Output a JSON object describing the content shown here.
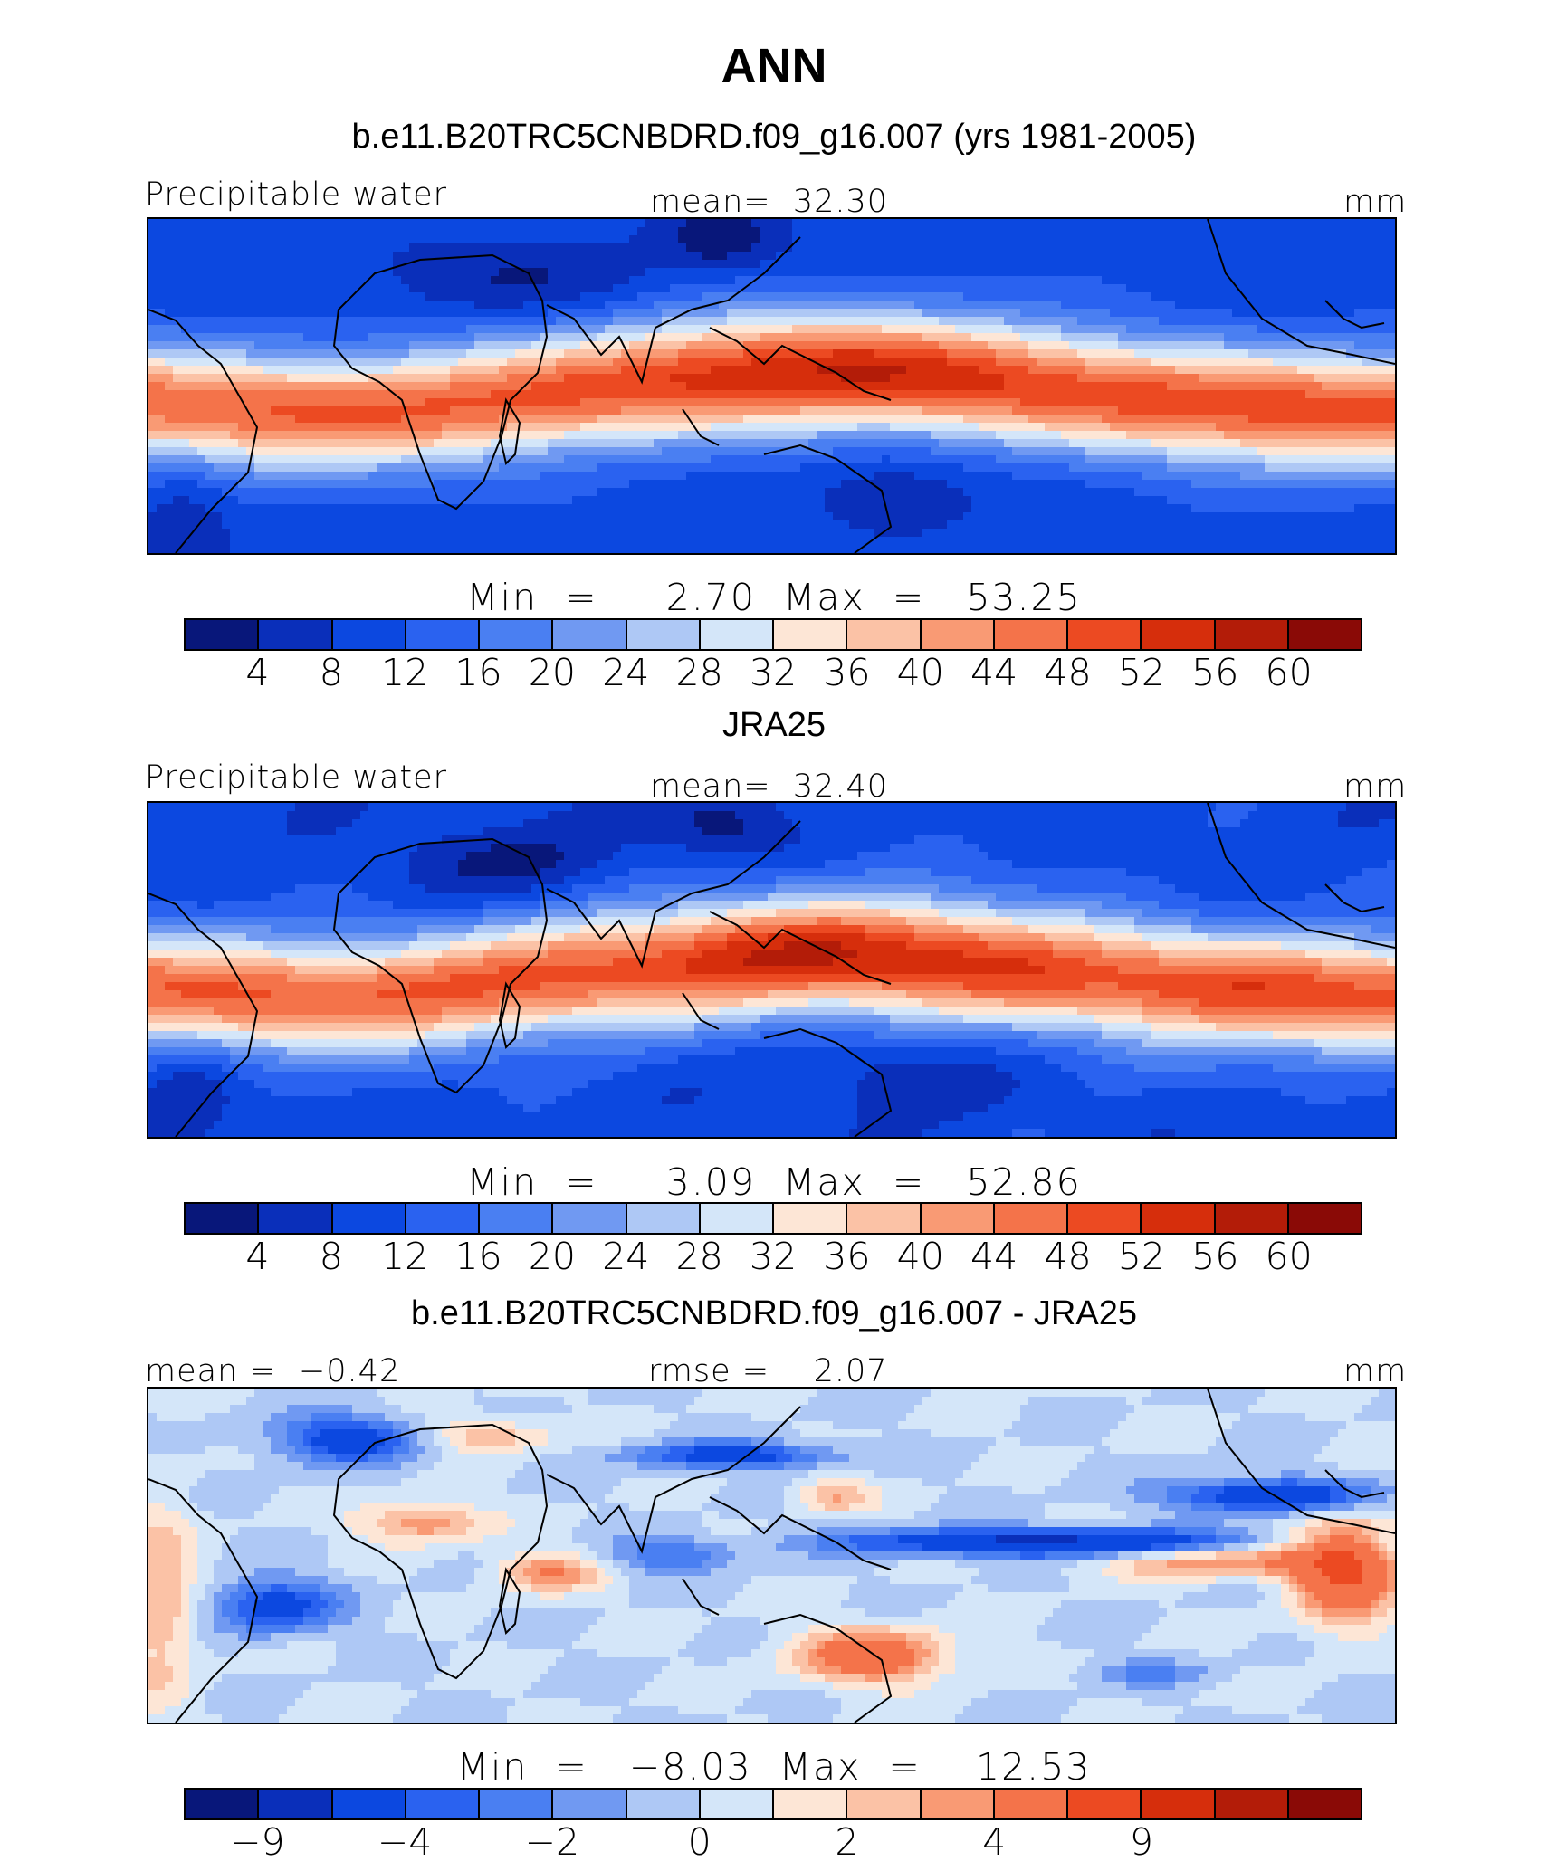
{
  "title": "ANN",
  "colors": [
    "#08177a",
    "#0a2fba",
    "#0c48e0",
    "#2a62f0",
    "#4a7ff2",
    "#7099f2",
    "#aec8f5",
    "#d4e6f9",
    "#fde6d6",
    "#fbc2a6",
    "#f99a74",
    "#f4734a",
    "#ec4a22",
    "#d62e0c",
    "#b31c08",
    "#8a0a06"
  ],
  "panels": [
    {
      "title": "b.e11.B20TRC5CNBDRD.f09_g16.007 (yrs 1981-2005)",
      "left_label": "Precipitable water",
      "center_label": "mean=  32.30",
      "right_label": "mm",
      "min_label": "Min  =",
      "min_value": "2.70",
      "max_label": "Max  =",
      "max_value": "53.25",
      "ticks": [
        "4",
        "8",
        "12",
        "16",
        "20",
        "24",
        "28",
        "32",
        "36",
        "40",
        "44",
        "48",
        "52",
        "56",
        "60"
      ],
      "kind": "field",
      "map_icon": "world-map-precipitable-water"
    },
    {
      "title": "JRA25",
      "left_label": "Precipitable water",
      "center_label": "mean=  32.40",
      "right_label": "mm",
      "min_label": "Min  =",
      "min_value": "3.09",
      "max_label": "Max  =",
      "max_value": "52.86",
      "ticks": [
        "4",
        "8",
        "12",
        "16",
        "20",
        "24",
        "28",
        "32",
        "36",
        "40",
        "44",
        "48",
        "52",
        "56",
        "60"
      ],
      "kind": "field",
      "map_icon": "world-map-precipitable-water"
    },
    {
      "title": "b.e11.B20TRC5CNBDRD.f09_g16.007 - JRA25",
      "left_label": "mean =  −0.42",
      "center_label": "rmse =    2.07",
      "right_label": "mm",
      "min_label": "Min  =",
      "min_value": "−8.03",
      "max_label": "Max  =",
      "max_value": "12.53",
      "ticks": [
        "−9",
        "",
        "−4",
        "",
        "−2",
        "",
        "0",
        "",
        "2",
        "",
        "4",
        "",
        "9",
        "",
        ""
      ],
      "kind": "difference",
      "map_icon": "world-map-difference"
    }
  ]
}
